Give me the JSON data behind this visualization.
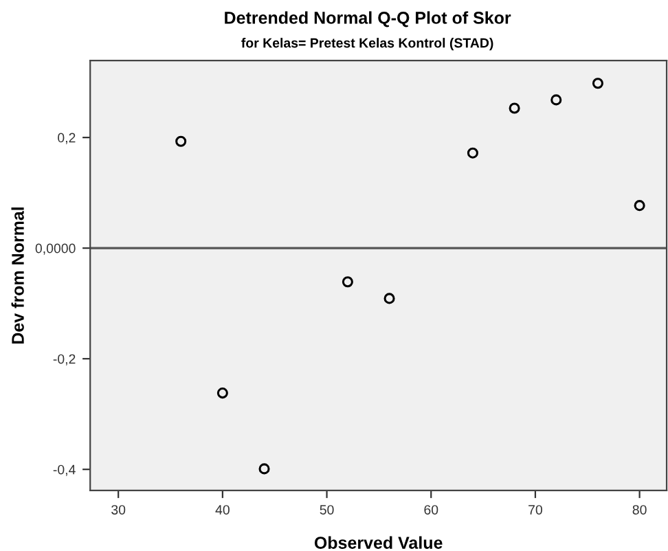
{
  "chart_data": {
    "type": "scatter",
    "title": "Detrended Normal Q-Q Plot of Skor",
    "subtitle": "for Kelas= Pretest Kelas Kontrol (STAD)",
    "xlabel": "Observed Value",
    "ylabel": "Dev from Normal",
    "x": [
      36,
      40,
      44,
      52,
      56,
      64,
      68,
      72,
      76,
      80
    ],
    "values": [
      0.193,
      -0.262,
      -0.399,
      -0.061,
      -0.091,
      0.172,
      0.253,
      0.268,
      0.298,
      0.077
    ],
    "color": "#000000",
    "marker": "circle",
    "xlim": [
      27.3,
      82.6
    ],
    "ylim": [
      -0.438,
      0.339
    ],
    "xticks": [
      30,
      40,
      50,
      60,
      70,
      80
    ],
    "yticks": [
      {
        "value": -0.4,
        "label": "-0,4"
      },
      {
        "value": -0.2,
        "label": "-0,2"
      },
      {
        "value": 0,
        "label": "0,0000"
      },
      {
        "value": 0.2,
        "label": "0,2"
      }
    ],
    "ref_lines": [
      {
        "axis": "y",
        "value": 0,
        "color": "#555555"
      }
    ],
    "grid": false,
    "legend": false
  }
}
